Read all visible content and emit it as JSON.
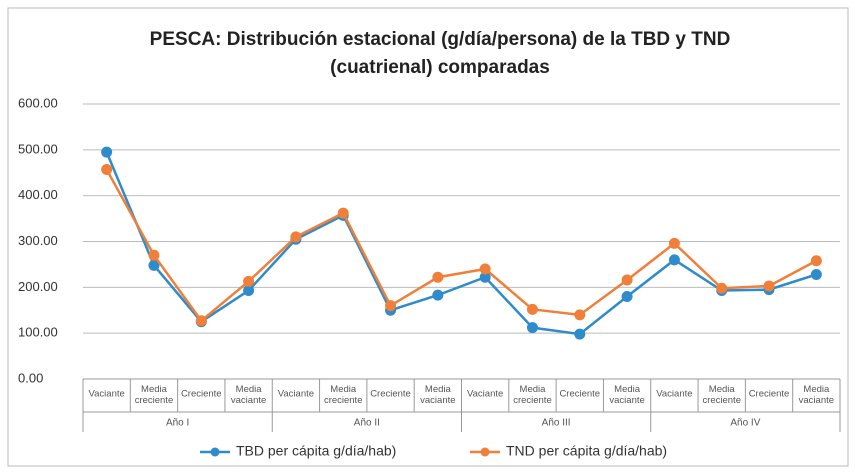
{
  "chart_data": {
    "type": "line",
    "title_lines": [
      "PESCA: Distribución estacional (g/día/persona)  de la TBD y TND",
      "(cuatrienal) comparadas"
    ],
    "categories": [
      "Vaciante",
      "Media creciente",
      "Creciente",
      "Media vaciante",
      "Vaciante",
      "Media creciente",
      "Creciente",
      "Media vaciante",
      "Vaciante",
      "Media creciente",
      "Creciente",
      "Media vaciante",
      "Vaciante",
      "Media creciente",
      "Creciente",
      "Media vaciante"
    ],
    "groups": [
      "Año I",
      "Año II",
      "Año III",
      "Año IV"
    ],
    "series": [
      {
        "name": "TBD per cápita g/día/hab)",
        "color": "#2e8bcc",
        "values": [
          495,
          248,
          125,
          193,
          305,
          357,
          150,
          183,
          222,
          112,
          98,
          180,
          260,
          193,
          195,
          228
        ]
      },
      {
        "name": "TND per cápita g/día/hab)",
        "color": "#f07f3a",
        "values": [
          457,
          270,
          127,
          213,
          310,
          362,
          160,
          222,
          240,
          152,
          140,
          216,
          296,
          198,
          203,
          258
        ]
      }
    ],
    "ylim": [
      0,
      600
    ],
    "yticks": [
      {
        "value": 0,
        "label": "0.00"
      },
      {
        "value": 100,
        "label": "100.00"
      },
      {
        "value": 200,
        "label": "200.00"
      },
      {
        "value": 300,
        "label": "300.00"
      },
      {
        "value": 400,
        "label": "400.00"
      },
      {
        "value": 500,
        "label": "500.00"
      },
      {
        "value": 600,
        "label": "600.00"
      }
    ],
    "grid": true,
    "legend": "bottom"
  }
}
